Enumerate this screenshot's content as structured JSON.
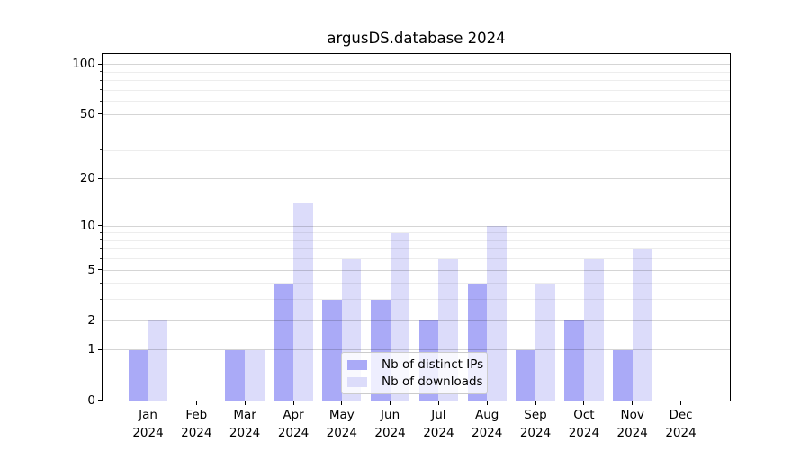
{
  "chart_data": {
    "type": "bar",
    "title": "argusDS.database 2024",
    "categories": [
      "Jan 2024",
      "Feb 2024",
      "Mar 2024",
      "Apr 2024",
      "May 2024",
      "Jun 2024",
      "Jul 2024",
      "Aug 2024",
      "Sep 2024",
      "Oct 2024",
      "Nov 2024",
      "Dec 2024"
    ],
    "series": [
      {
        "name": "Nb of distinct IPs",
        "color": "#aaaaf7",
        "values": [
          1,
          0,
          1,
          4,
          3,
          3,
          2,
          4,
          1,
          2,
          1,
          0
        ]
      },
      {
        "name": "Nb of downloads",
        "color": "#dcdcfa",
        "values": [
          2,
          0,
          1,
          14,
          6,
          9,
          6,
          10,
          4,
          6,
          7,
          0
        ]
      }
    ],
    "yaxis": {
      "scale": "log1p",
      "major_ticks": [
        0,
        1,
        2,
        5,
        10,
        20,
        50,
        100
      ],
      "minor_gridlines": [
        3,
        4,
        6,
        7,
        8,
        9,
        30,
        40,
        60,
        70,
        80,
        90
      ],
      "ylim": [
        0,
        114
      ],
      "grid": true
    },
    "legend_position": "lower center"
  }
}
